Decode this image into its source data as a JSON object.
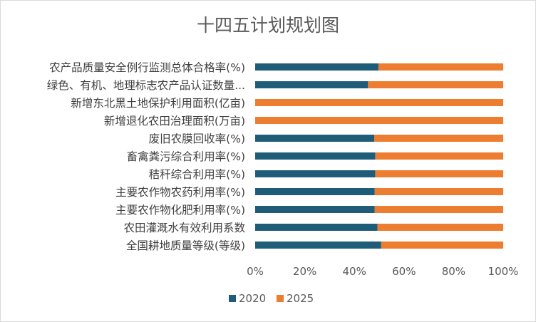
{
  "chart_data": {
    "type": "bar",
    "orientation": "horizontal",
    "stacked": "100%",
    "title": "十四五计划规划图",
    "categories": [
      "农产品质量安全例行监测总体合格率(%)",
      "绿色、有机、地理标志农产品认证数量...",
      "新增东北黑土地保护利用面积(亿亩)",
      "新增退化农田治理面积(万亩)",
      "废旧农膜回收率(%)",
      "畜禽粪污综合利用率(%)",
      "秸秆综合利用率(%)",
      "主要农作物农药利用率(%)",
      "主要农作物化肥利用率(%)",
      "农田灌溉水有效利用系数",
      "全国耕地质量等级(等级)"
    ],
    "series": [
      {
        "name": "2020",
        "color": "#1f5c7a",
        "share": [
          0.497,
          0.455,
          0,
          0,
          0.48,
          0.484,
          0.484,
          0.482,
          0.482,
          0.493,
          0.508
        ]
      },
      {
        "name": "2025",
        "color": "#ed7d31",
        "share": [
          0.503,
          0.545,
          1,
          1,
          0.52,
          0.516,
          0.516,
          0.518,
          0.518,
          0.507,
          0.492
        ]
      }
    ],
    "xaxis": {
      "ticks": [
        "0%",
        "20%",
        "40%",
        "60%",
        "80%",
        "100%"
      ],
      "range": [
        0,
        1
      ]
    },
    "legend": {
      "position": "bottom"
    },
    "grid": false
  }
}
